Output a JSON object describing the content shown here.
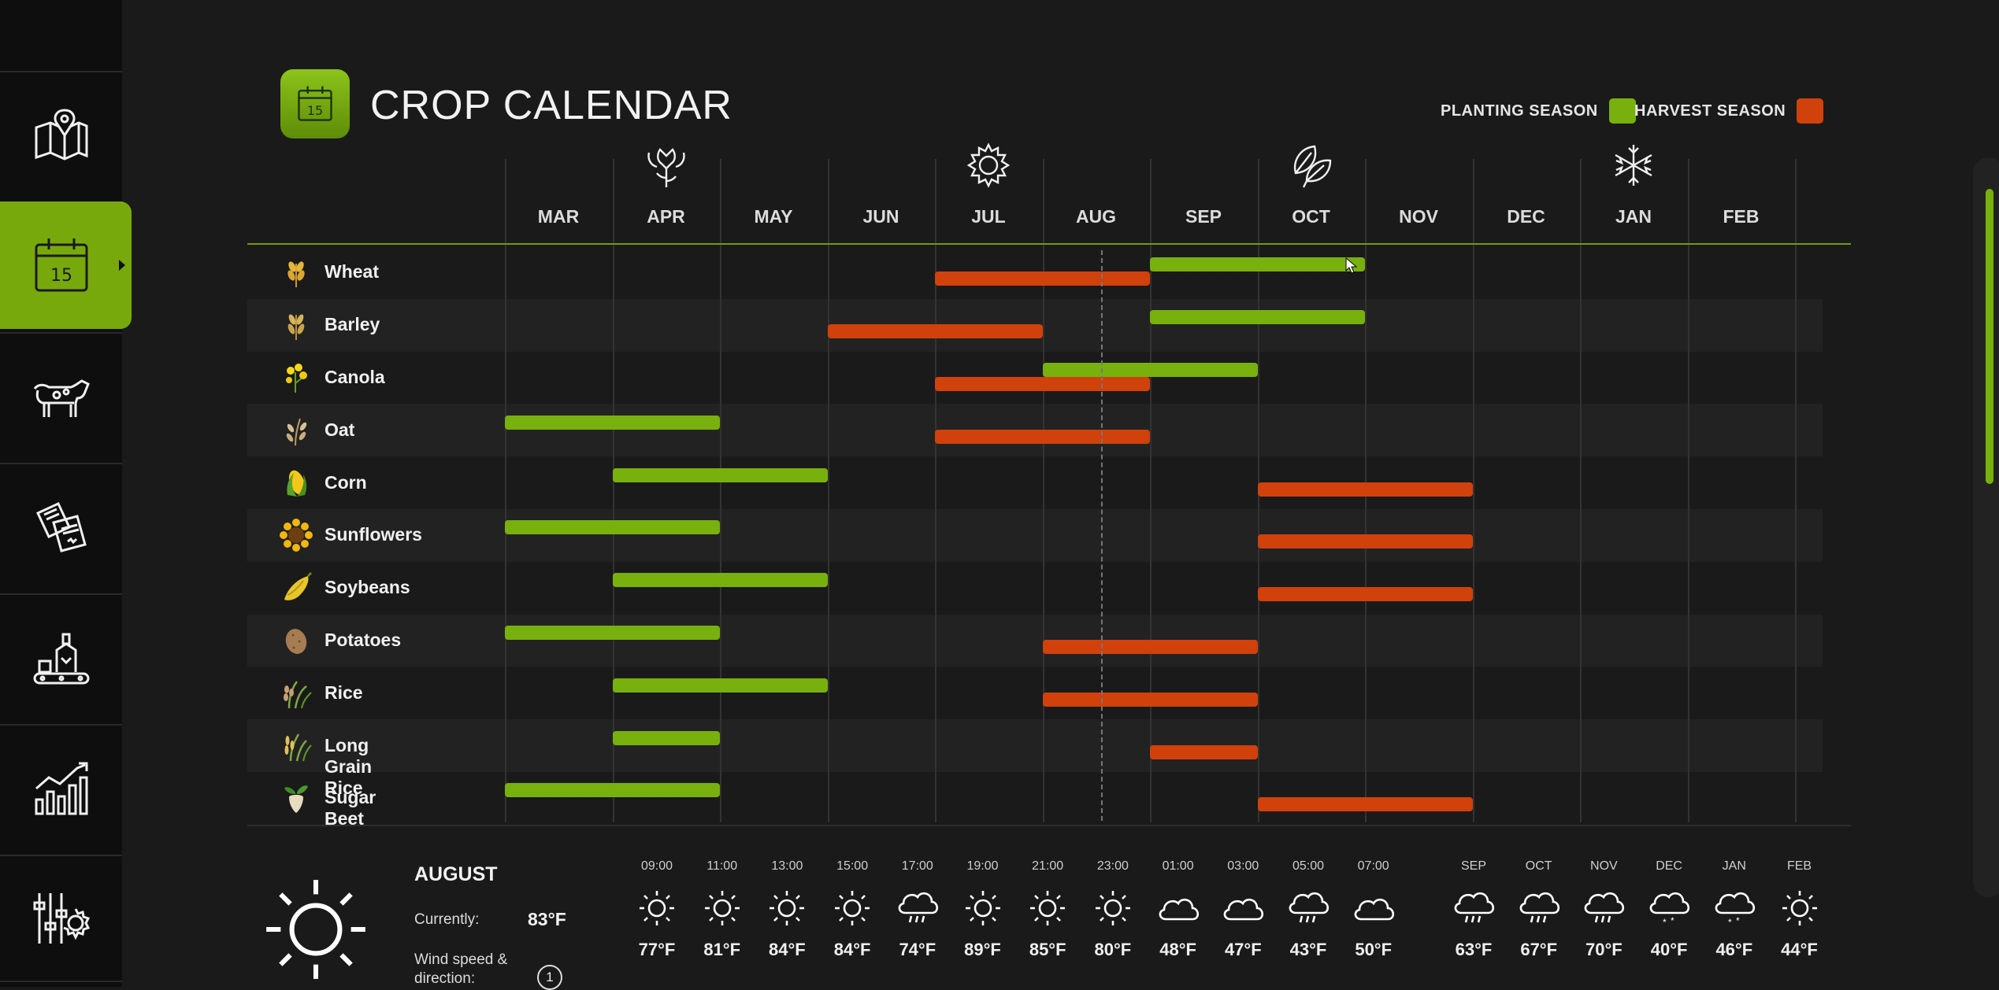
{
  "header": {
    "title": "CROP CALENDAR",
    "logo_day": "15"
  },
  "legend": {
    "planting_label": "PLANTING SEASON",
    "harvest_label": "HARVEST SEASON",
    "planting_color": "#78b00e",
    "harvest_color": "#d0410c"
  },
  "sidebar": {
    "items": [
      {
        "icon": "map-icon"
      },
      {
        "icon": "calendar-icon",
        "active": true
      },
      {
        "icon": "cow-icon"
      },
      {
        "icon": "documents-icon"
      },
      {
        "icon": "factory-icon"
      },
      {
        "icon": "bar-chart-icon"
      },
      {
        "icon": "settings-sliders-icon"
      }
    ]
  },
  "months": [
    "MAR",
    "APR",
    "MAY",
    "JUN",
    "JUL",
    "AUG",
    "SEP",
    "OCT",
    "NOV",
    "DEC",
    "JAN",
    "FEB"
  ],
  "season_icons": [
    {
      "icon": "flower-icon",
      "month": "APR"
    },
    {
      "icon": "sun-icon",
      "month": "JUL"
    },
    {
      "icon": "leaves-icon",
      "month": "OCT"
    },
    {
      "icon": "snowflake-icon",
      "month": "JAN"
    }
  ],
  "crops": [
    {
      "name": "Wheat",
      "icon": "wheat-icon",
      "planting": [
        "SEP",
        "OCT"
      ],
      "harvest": [
        "JUL",
        "AUG"
      ]
    },
    {
      "name": "Barley",
      "icon": "barley-icon",
      "planting": [
        "SEP",
        "OCT"
      ],
      "harvest": [
        "JUN",
        "JUL"
      ]
    },
    {
      "name": "Canola",
      "icon": "canola-icon",
      "planting": [
        "AUG",
        "SEP"
      ],
      "harvest": [
        "JUL",
        "AUG"
      ]
    },
    {
      "name": "Oat",
      "icon": "oat-icon",
      "planting": [
        "MAR",
        "APR"
      ],
      "harvest": [
        "JUL",
        "AUG"
      ]
    },
    {
      "name": "Corn",
      "icon": "corn-icon",
      "planting": [
        "APR",
        "MAY"
      ],
      "harvest": [
        "OCT",
        "NOV"
      ]
    },
    {
      "name": "Sunflowers",
      "icon": "sunflower-icon",
      "planting": [
        "MAR",
        "APR"
      ],
      "harvest": [
        "OCT",
        "NOV"
      ]
    },
    {
      "name": "Soybeans",
      "icon": "soybean-icon",
      "planting": [
        "APR",
        "MAY"
      ],
      "harvest": [
        "OCT",
        "NOV"
      ]
    },
    {
      "name": "Potatoes",
      "icon": "potato-icon",
      "planting": [
        "MAR",
        "APR"
      ],
      "harvest": [
        "AUG",
        "SEP"
      ]
    },
    {
      "name": "Rice",
      "icon": "rice-icon",
      "planting": [
        "APR",
        "MAY"
      ],
      "harvest": [
        "AUG",
        "SEP"
      ]
    },
    {
      "name": "Long Grain Rice",
      "icon": "long-grain-rice-icon",
      "planting": [
        "APR",
        "APR"
      ],
      "harvest": [
        "SEP",
        "SEP"
      ]
    },
    {
      "name": "Sugar Beet",
      "icon": "sugar-beet-icon",
      "planting": [
        "MAR",
        "APR"
      ],
      "harvest": [
        "OCT",
        "NOV"
      ]
    }
  ],
  "weather": {
    "month": "AUGUST",
    "current_label": "Currently:",
    "current_value": "83°F",
    "wind_label": "Wind speed & direction:",
    "wind_value": "1",
    "hourly": [
      {
        "time": "09:00",
        "icon": "sun",
        "temp": "77°F"
      },
      {
        "time": "11:00",
        "icon": "sun",
        "temp": "81°F"
      },
      {
        "time": "13:00",
        "icon": "sun",
        "temp": "84°F"
      },
      {
        "time": "15:00",
        "icon": "sun",
        "temp": "84°F"
      },
      {
        "time": "17:00",
        "icon": "rain",
        "temp": "74°F"
      },
      {
        "time": "19:00",
        "icon": "sun",
        "temp": "89°F"
      },
      {
        "time": "21:00",
        "icon": "sun",
        "temp": "85°F"
      },
      {
        "time": "23:00",
        "icon": "sun",
        "temp": "80°F"
      },
      {
        "time": "01:00",
        "icon": "cloud",
        "temp": "48°F"
      },
      {
        "time": "03:00",
        "icon": "cloud",
        "temp": "47°F"
      },
      {
        "time": "05:00",
        "icon": "rain",
        "temp": "43°F"
      },
      {
        "time": "07:00",
        "icon": "cloud",
        "temp": "50°F"
      }
    ],
    "monthly": [
      {
        "time": "SEP",
        "icon": "rain",
        "temp": "63°F"
      },
      {
        "time": "OCT",
        "icon": "rain",
        "temp": "67°F"
      },
      {
        "time": "NOV",
        "icon": "rain",
        "temp": "70°F"
      },
      {
        "time": "DEC",
        "icon": "snow",
        "temp": "40°F"
      },
      {
        "time": "JAN",
        "icon": "snow",
        "temp": "46°F"
      },
      {
        "time": "FEB",
        "icon": "sun",
        "temp": "44°F"
      }
    ]
  }
}
